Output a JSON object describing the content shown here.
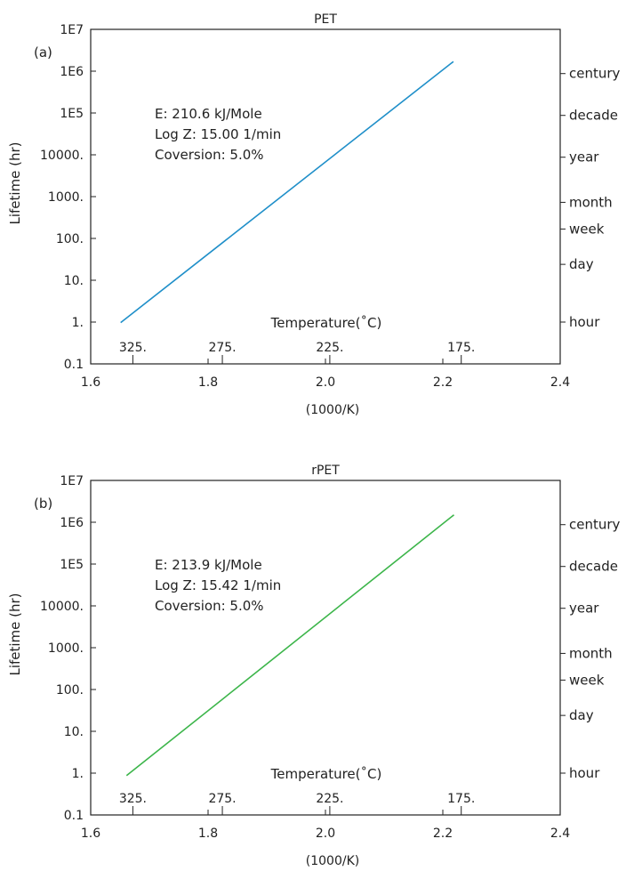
{
  "chart_data": [
    {
      "type": "line",
      "panel_label": "(a)",
      "title": "PET",
      "xlabel": "(1000/K)",
      "ylabel": "Lifetime (hr)",
      "xlim": [
        1.6,
        2.4
      ],
      "ylim": [
        0.1,
        10000000
      ],
      "y_scale": "log",
      "x_ticks": [
        1.6,
        1.8,
        2.0,
        2.2,
        2.4
      ],
      "x_tick_labels": [
        "1.6",
        "1.8",
        "2.0",
        "2.2",
        "2.4"
      ],
      "y_ticks": [
        0.1,
        1,
        10,
        100,
        1000,
        10000,
        100000,
        1000000,
        10000000
      ],
      "y_tick_labels": [
        "0.1",
        "1.",
        "10.",
        "100.",
        "1000.",
        "10000.",
        "1E5",
        "1E6",
        "1E7"
      ],
      "temperature_axis_label": "Temperature(˚C)",
      "temperature_ticks": [
        325,
        275,
        225,
        175
      ],
      "temperature_tick_labels": [
        "325.",
        "275.",
        "225.",
        "175."
      ],
      "right_axis_ticks": [
        {
          "label": "century",
          "hours": 876000
        },
        {
          "label": "decade",
          "hours": 87600
        },
        {
          "label": "year",
          "hours": 8760
        },
        {
          "label": "month",
          "hours": 730
        },
        {
          "label": "week",
          "hours": 168
        },
        {
          "label": "day",
          "hours": 24
        },
        {
          "label": "hour",
          "hours": 1
        }
      ],
      "annotations": [
        "E: 210.6 kJ/Mole",
        "Log Z: 15.00 1/min",
        "Coversion: 5.0%"
      ],
      "color": "#1f8fc9",
      "series": [
        {
          "x": [
            1.651,
            2.218
          ],
          "y": [
            0.97,
            1700000
          ]
        }
      ]
    },
    {
      "type": "line",
      "panel_label": "(b)",
      "title": "rPET",
      "xlabel": "(1000/K)",
      "ylabel": "Lifetime (hr)",
      "xlim": [
        1.6,
        2.4
      ],
      "ylim": [
        0.1,
        10000000
      ],
      "y_scale": "log",
      "x_ticks": [
        1.6,
        1.8,
        2.0,
        2.2,
        2.4
      ],
      "x_tick_labels": [
        "1.6",
        "1.8",
        "2.0",
        "2.2",
        "2.4"
      ],
      "y_ticks": [
        0.1,
        1,
        10,
        100,
        1000,
        10000,
        100000,
        1000000,
        10000000
      ],
      "y_tick_labels": [
        "0.1",
        "1.",
        "10.",
        "100.",
        "1000.",
        "10000.",
        "1E5",
        "1E6",
        "1E7"
      ],
      "temperature_axis_label": "Temperature(˚C)",
      "temperature_ticks": [
        325,
        275,
        225,
        175
      ],
      "temperature_tick_labels": [
        "325.",
        "275.",
        "225.",
        "175."
      ],
      "right_axis_ticks": [
        {
          "label": "century",
          "hours": 876000
        },
        {
          "label": "decade",
          "hours": 87600
        },
        {
          "label": "year",
          "hours": 8760
        },
        {
          "label": "month",
          "hours": 730
        },
        {
          "label": "week",
          "hours": 168
        },
        {
          "label": "day",
          "hours": 24
        },
        {
          "label": "hour",
          "hours": 1
        }
      ],
      "annotations": [
        "E: 213.9 kJ/Mole",
        "Log Z: 15.42 1/min",
        "Coversion: 5.0%"
      ],
      "color": "#3cb54a",
      "series": [
        {
          "x": [
            1.661,
            2.219
          ],
          "y": [
            0.87,
            1500000
          ]
        }
      ]
    }
  ]
}
